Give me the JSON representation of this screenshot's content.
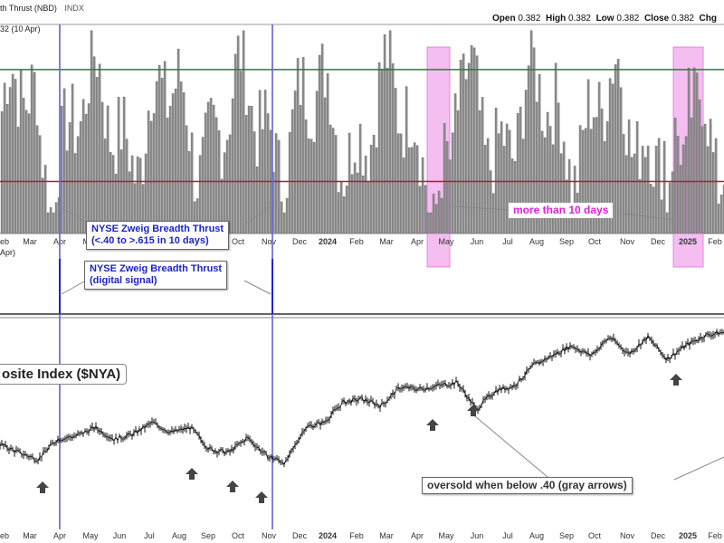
{
  "header": {
    "title": "th Thrust (NBD)",
    "exchange": "INDX",
    "sub_label": "32 (10 Apr)",
    "mid_label": "Apr)"
  },
  "ohlc": {
    "open_label": "Open",
    "open": "0.382",
    "high_label": "High",
    "high": "0.382",
    "low_label": "Low",
    "low": "0.382",
    "close_label": "Close",
    "close": "0.382",
    "chg_label": "Chg"
  },
  "annotations": {
    "zweig_thrust": "NYSE Zweig Breadth Thrust\n(<.40 to >.615 in 10 days)",
    "zweig_digital": "NYSE Zweig Breadth Thrust\n(digital signal)",
    "more_than_10": "more than 10 days",
    "oversold": "oversold when below .40 (gray arrows)",
    "nya_label": "osite Index ($NYA)"
  },
  "colors": {
    "bar_fill": "#8c8c8c",
    "upper_line": "#1f8a1f",
    "lower_line": "#c01818",
    "signal_line": "#6b6bd6",
    "highlight": "#f0a8ec",
    "price": "#111111",
    "arrow": "#444444"
  },
  "chart_data": [
    {
      "type": "bar",
      "panel": "breadth thrust",
      "ylim": [
        0.3,
        0.7
      ],
      "reference_lines": [
        0.615,
        0.4
      ],
      "months": [
        "eb",
        "Mar",
        "Apr",
        "May",
        "Jun",
        "Jul",
        "Aug",
        "Sep",
        "Oct",
        "Nov",
        "Dec",
        "2024",
        "Feb",
        "Mar",
        "Apr",
        "May",
        "Jun",
        "Jul",
        "Aug",
        "Sep",
        "Oct",
        "Nov",
        "Dec",
        "2025",
        "Feb"
      ],
      "signal_months": [
        "Apr",
        "Nov"
      ],
      "highlight_months": [
        "May",
        "2025"
      ]
    },
    {
      "type": "line",
      "panel": "digital signal",
      "ylim": [
        0,
        1
      ],
      "signals": [
        "Apr",
        "Nov"
      ]
    },
    {
      "type": "line",
      "panel": "$NYA",
      "months": [
        "eb",
        "Mar",
        "Apr",
        "May",
        "Jun",
        "Jul",
        "Aug",
        "Sep",
        "Oct",
        "Nov",
        "Dec",
        "2024",
        "Feb",
        "Mar",
        "Apr",
        "May",
        "Jun",
        "Jul",
        "Aug",
        "Sep",
        "Oct",
        "Nov",
        "Dec",
        "2025",
        "Feb"
      ],
      "path": [
        0.33,
        0.28,
        0.24,
        0.36,
        0.38,
        0.43,
        0.36,
        0.39,
        0.46,
        0.4,
        0.43,
        0.3,
        0.28,
        0.37,
        0.26,
        0.22,
        0.43,
        0.46,
        0.58,
        0.6,
        0.56,
        0.67,
        0.66,
        0.68,
        0.7,
        0.54,
        0.65,
        0.68,
        0.8,
        0.86,
        0.92,
        0.86,
        0.97,
        0.87,
        0.97,
        0.84,
        0.92,
        0.98,
        1.0
      ],
      "oversold_arrows": [
        "Mar",
        "Aug",
        "Sep",
        "Nov",
        "May",
        "May",
        "Dec"
      ]
    }
  ]
}
